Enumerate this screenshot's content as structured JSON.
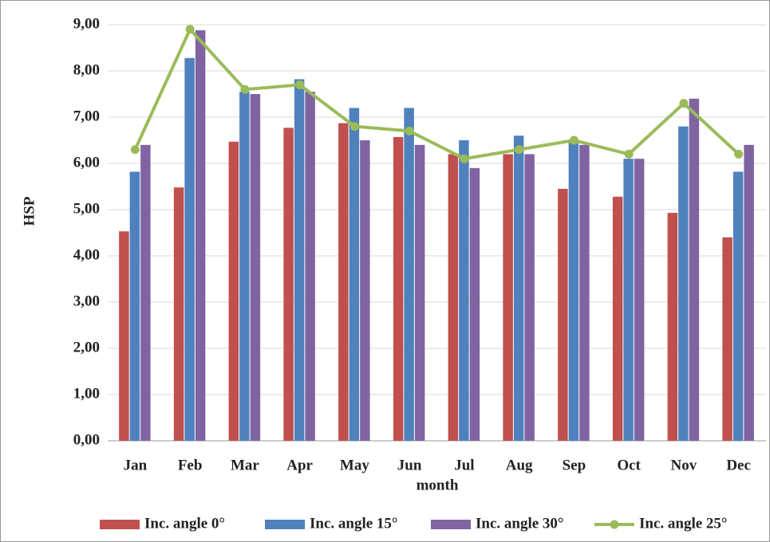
{
  "chart_data": {
    "type": "bar",
    "x_label": "month",
    "y_label": "HSP",
    "categories": [
      "Jan",
      "Feb",
      "Mar",
      "Apr",
      "May",
      "Jun",
      "Jul",
      "Aug",
      "Sep",
      "Oct",
      "Nov",
      "Dec"
    ],
    "series": [
      {
        "name": "Inc. angle 0°",
        "type": "bar",
        "color": "#c0504d",
        "values": [
          4.53,
          5.48,
          6.47,
          6.77,
          6.87,
          6.57,
          6.2,
          6.2,
          5.45,
          5.28,
          4.93,
          4.4
        ]
      },
      {
        "name": "Inc. angle 15°",
        "type": "bar",
        "color": "#4f81bd",
        "values": [
          5.82,
          8.28,
          7.55,
          7.82,
          7.2,
          7.2,
          6.5,
          6.6,
          6.5,
          6.1,
          6.8,
          5.82
        ]
      },
      {
        "name": "Inc. angle 30°",
        "type": "bar",
        "color": "#8064a2",
        "values": [
          6.4,
          8.88,
          7.5,
          7.55,
          6.5,
          6.4,
          5.9,
          6.2,
          6.4,
          6.1,
          7.4,
          6.4
        ]
      },
      {
        "name": "Inc. angle 25°",
        "type": "line",
        "color": "#9bbb59",
        "values": [
          6.3,
          8.9,
          7.6,
          7.7,
          6.8,
          6.7,
          6.1,
          6.3,
          6.5,
          6.2,
          7.3,
          6.2
        ]
      }
    ],
    "ylim": [
      0,
      9
    ],
    "yticks": [
      {
        "value": 0,
        "label": "0,00"
      },
      {
        "value": 1,
        "label": "1,00"
      },
      {
        "value": 2,
        "label": "2,00"
      },
      {
        "value": 3,
        "label": "3,00"
      },
      {
        "value": 4,
        "label": "4,00"
      },
      {
        "value": 5,
        "label": "5,00"
      },
      {
        "value": 6,
        "label": "6,00"
      },
      {
        "value": 7,
        "label": "7,00"
      },
      {
        "value": 8,
        "label": "8,00"
      },
      {
        "value": 9,
        "label": "9,00"
      }
    ],
    "grid": true,
    "legend": "bottom"
  }
}
